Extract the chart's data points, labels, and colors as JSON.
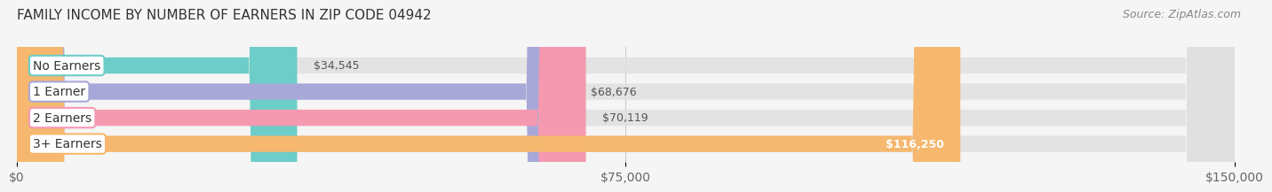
{
  "title": "FAMILY INCOME BY NUMBER OF EARNERS IN ZIP CODE 04942",
  "source": "Source: ZipAtlas.com",
  "categories": [
    "No Earners",
    "1 Earner",
    "2 Earners",
    "3+ Earners"
  ],
  "values": [
    34545,
    68676,
    70119,
    116250
  ],
  "labels": [
    "$34,545",
    "$68,676",
    "$70,119",
    "$116,250"
  ],
  "bar_colors": [
    "#6dcdc8",
    "#a8a8d8",
    "#f599b0",
    "#f5b86e"
  ],
  "xlim": [
    0,
    150000
  ],
  "xticks": [
    0,
    75000,
    150000
  ],
  "xticklabels": [
    "$0",
    "$75,000",
    "$150,000"
  ],
  "title_fontsize": 11,
  "source_fontsize": 9,
  "tick_fontsize": 10,
  "bar_label_fontsize": 9,
  "cat_label_fontsize": 10,
  "background_color": "#f5f5f5",
  "bar_height": 0.62
}
